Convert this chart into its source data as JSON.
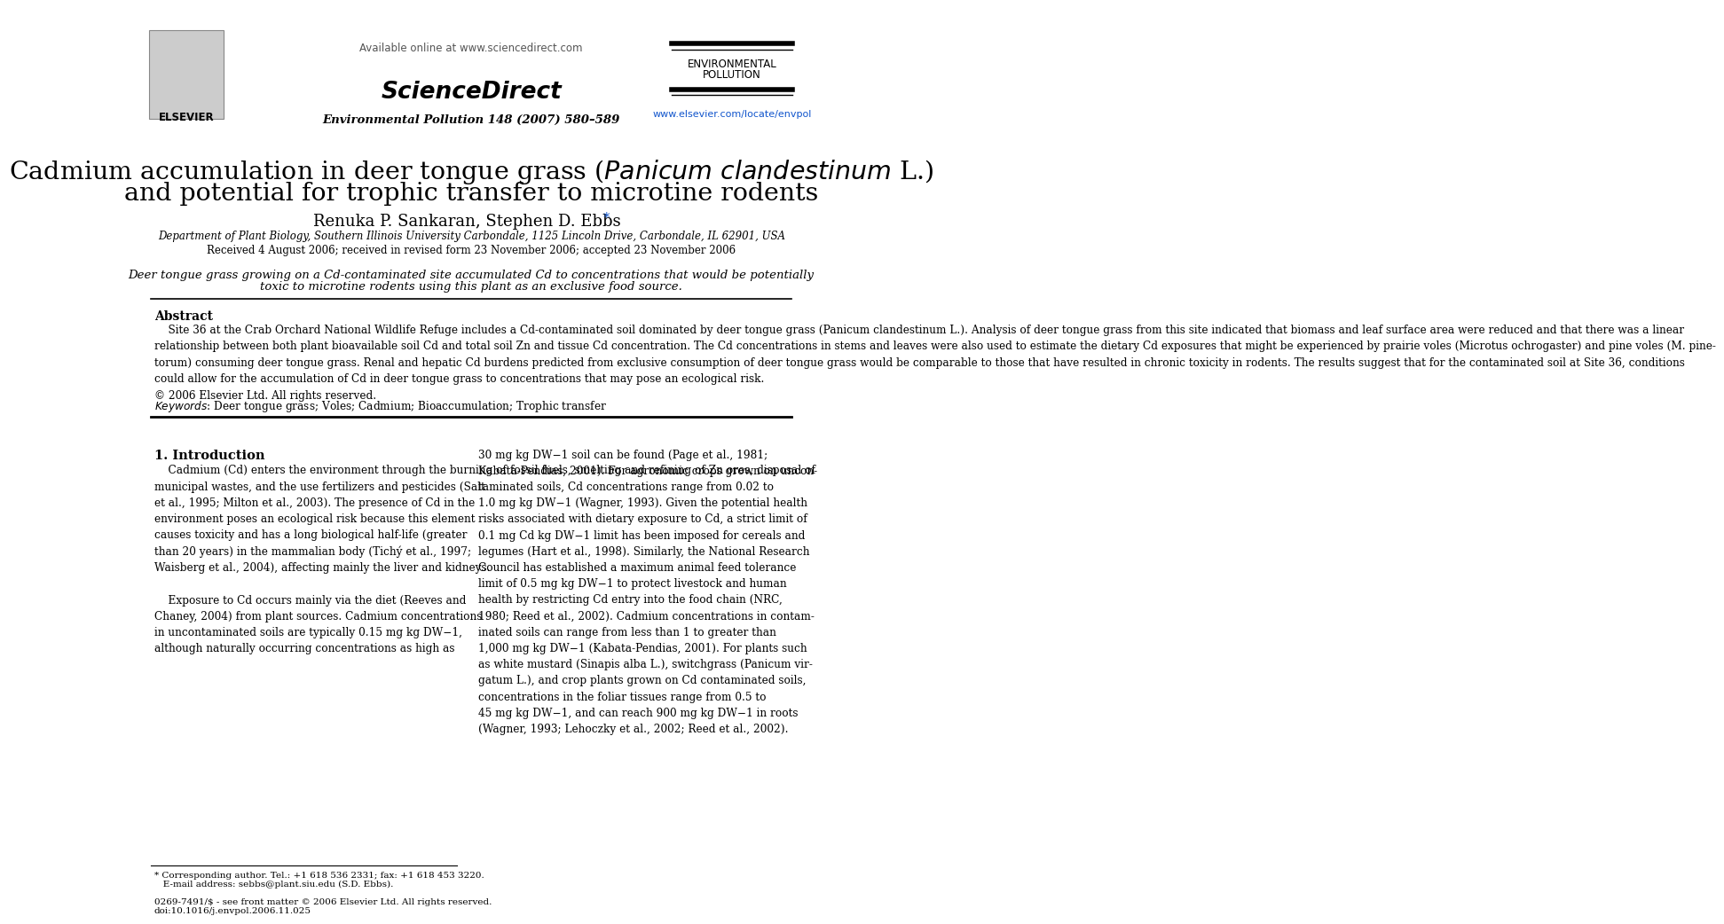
{
  "bg_color": "#ffffff",
  "title_line1": "Cadmium accumulation in deer tongue grass ($\\mathit{Panicum\\ clandestinum}$ L.)",
  "title_line2": "and potential for trophic transfer to microtine rodents",
  "authors": "Renuka P. Sankaran, Stephen D. Ebbs",
  "affiliation": "Department of Plant Biology, Southern Illinois University Carbondale, 1125 Lincoln Drive, Carbondale, IL 62901, USA",
  "received": "Received 4 August 2006; received in revised form 23 November 2006; accepted 23 November 2006",
  "highlight_line1": "Deer tongue grass growing on a Cd-contaminated site accumulated Cd to concentrations that would be potentially",
  "highlight_line2": "toxic to microtine rodents using this plant as an exclusive food source.",
  "abstract_title": "Abstract",
  "abstract_body": "    Site 36 at the Crab Orchard National Wildlife Refuge includes a Cd-contaminated soil dominated by deer tongue grass (Panicum clandestinum L.). Analysis of deer tongue grass from this site indicated that biomass and leaf surface area were reduced and that there was a linear\nrelationship between both plant bioavailable soil Cd and total soil Zn and tissue Cd concentration. The Cd concentrations in stems and leaves were also used to estimate the dietary Cd exposures that might be experienced by prairie voles (Microtus ochrogaster) and pine voles (M. pine-\ntorum) consuming deer tongue grass. Renal and hepatic Cd burdens predicted from exclusive consumption of deer tongue grass would be comparable to those that have resulted in chronic toxicity in rodents. The results suggest that for the contaminated soil at Site 36, conditions\ncould allow for the accumulation of Cd in deer tongue grass to concentrations that may pose an ecological risk.\n© 2006 Elsevier Ltd. All rights reserved.",
  "keywords": "$\\mathit{Keywords}$: Deer tongue grass; Voles; Cadmium; Bioaccumulation; Trophic transfer",
  "section1_title": "1. Introduction",
  "left_col_text": "    Cadmium (Cd) enters the environment through the burning of fossil fuels, smelting and refining of Zn ores, disposal of\nmunicipal wastes, and the use fertilizers and pesticides (Salt\net al., 1995; Milton et al., 2003). The presence of Cd in the\nenvironment poses an ecological risk because this element\ncauses toxicity and has a long biological half-life (greater\nthan 20 years) in the mammalian body (Tichý et al., 1997;\nWaisberg et al., 2004), affecting mainly the liver and kidneys.\n\n    Exposure to Cd occurs mainly via the diet (Reeves and\nChaney, 2004) from plant sources. Cadmium concentrations\nin uncontaminated soils are typically 0.15 mg kg DW−1,\nalthough naturally occurring concentrations as high as",
  "right_col_text": "30 mg kg DW−1 soil can be found (Page et al., 1981;\nKabata-Pendias, 2001). For agronomic crops grown on uncon-\ntaminated soils, Cd concentrations range from 0.02 to\n1.0 mg kg DW−1 (Wagner, 1993). Given the potential health\nrisks associated with dietary exposure to Cd, a strict limit of\n0.1 mg Cd kg DW−1 limit has been imposed for cereals and\nlegumes (Hart et al., 1998). Similarly, the National Research\nCouncil has established a maximum animal feed tolerance\nlimit of 0.5 mg kg DW−1 to protect livestock and human\nhealth by restricting Cd entry into the food chain (NRC,\n1980; Reed et al., 2002). Cadmium concentrations in contam-\ninated soils can range from less than 1 to greater than\n1,000 mg kg DW−1 (Kabata-Pendias, 2001). For plants such\nas white mustard (Sinapis alba L.), switchgrass (Panicum vir-\ngatum L.), and crop plants grown on Cd contaminated soils,\nconcentrations in the foliar tissues range from 0.5 to\n45 mg kg DW−1, and can reach 900 mg kg DW−1 in roots\n(Wagner, 1993; Lehoczky et al., 2002; Reed et al., 2002).",
  "footer_line1": "* Corresponding author. Tel.: +1 618 536 2331; fax: +1 618 453 3220.",
  "footer_line2": "   E-mail address: sebbs@plant.siu.edu (S.D. Ebbs).",
  "footer_bottom1": "0269-7491/$ - see front matter © 2006 Elsevier Ltd. All rights reserved.",
  "footer_bottom2": "doi:10.1016/j.envpol.2006.11.025",
  "journal_info": "Environmental Pollution 148 (2007) 580–589",
  "available_online": "Available online at www.sciencedirect.com",
  "env_pollution_line1": "ENVIRONMENTAL",
  "env_pollution_line2": "POLLUTION",
  "journal_url": "www.elsevier.com/locate/envpol",
  "link_color": "#1155cc",
  "text_color": "#000000",
  "elsevier_text": "ELSEVIER",
  "sciencedirect_text": "ScienceDirect"
}
